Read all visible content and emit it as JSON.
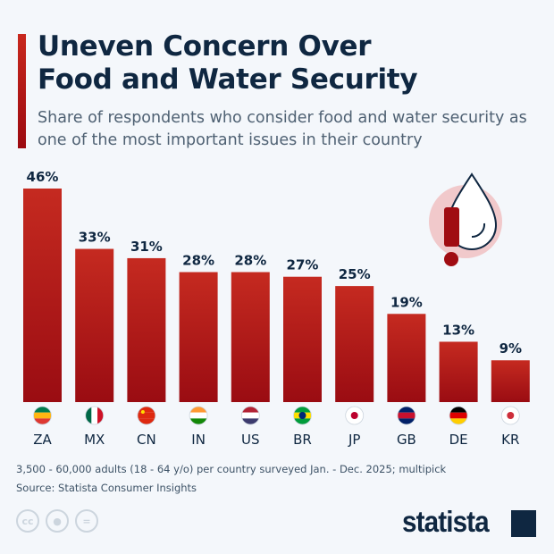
{
  "title_line1": "Uneven Concern Over",
  "title_line2": "Food and Water Security",
  "subtitle": "Share of respondents who consider food and water security as one of the most important issues in their country",
  "chart_data": {
    "type": "bar",
    "categories": [
      "ZA",
      "MX",
      "CN",
      "IN",
      "US",
      "BR",
      "JP",
      "GB",
      "DE",
      "KR"
    ],
    "values": [
      46,
      33,
      31,
      28,
      28,
      27,
      25,
      19,
      13,
      9
    ],
    "labels": [
      "46%",
      "33%",
      "31%",
      "28%",
      "28%",
      "27%",
      "25%",
      "19%",
      "13%",
      "9%"
    ],
    "ylim": [
      0,
      46
    ],
    "grid": false,
    "bar_color": "#b5171b"
  },
  "note": "3,500 - 60,000 adults (18 - 64 y/o) per country surveyed Jan. - Dec. 2025; multipick",
  "source": "Source: Statista Consumer Insights",
  "license_icons": [
    "cc-icon",
    "attribution-icon",
    "no-derivatives-icon"
  ],
  "logo": "statista",
  "colors": {
    "accent": "#b5171b",
    "text": "#0f2741",
    "background": "#f4f7fb"
  }
}
